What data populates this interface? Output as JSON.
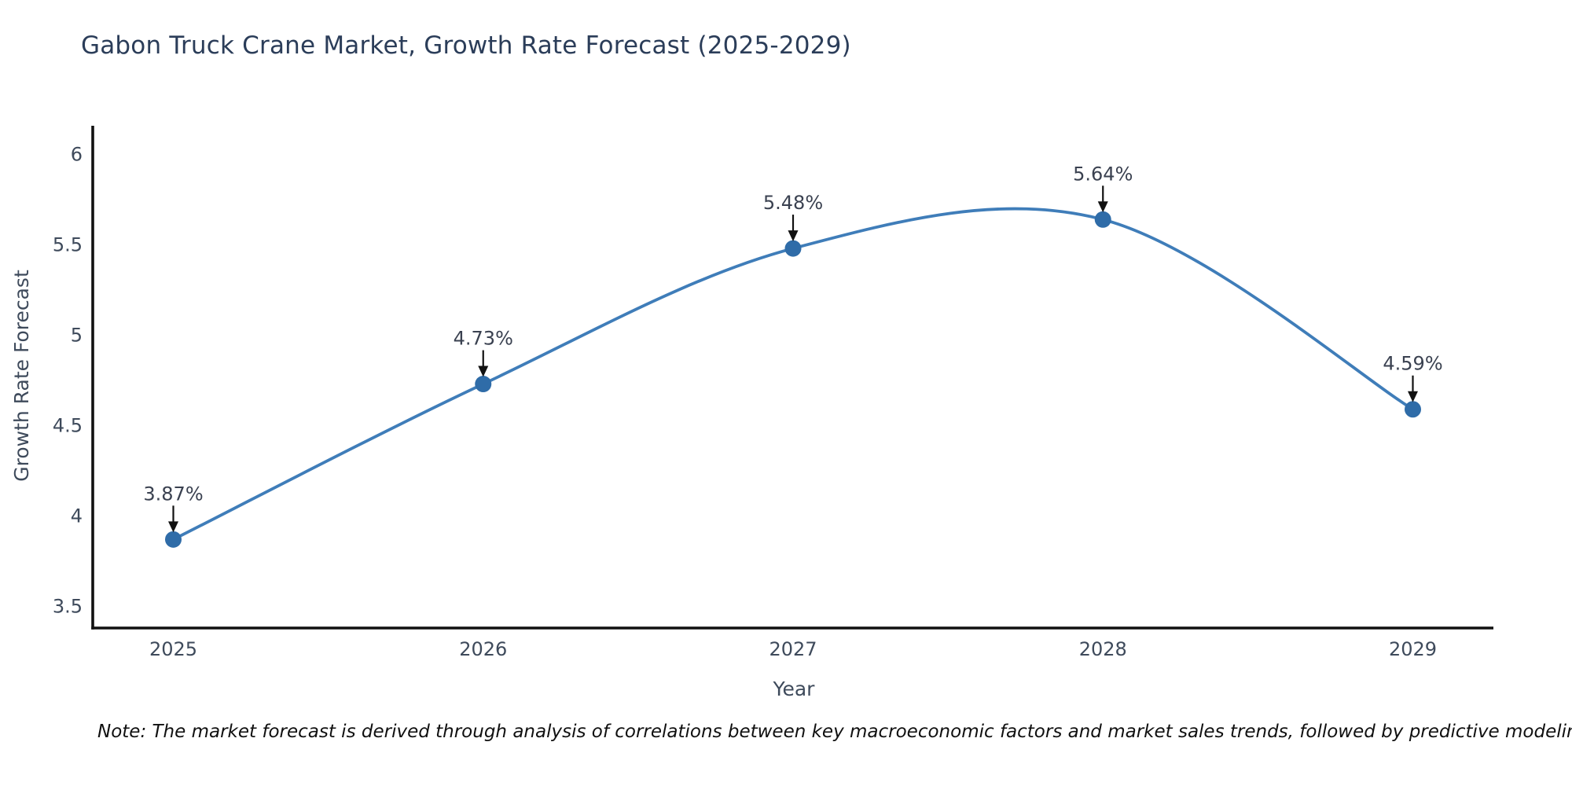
{
  "chart_title": "Gabon Truck Crane Market, Growth Rate Forecast (2025-2029)",
  "note": "Note: The market forecast is derived through analysis of correlations between key macroeconomic factors and market sales trends, followed by predictive modeling to project future sales",
  "chart_data": {
    "type": "line",
    "line_shape": "spline",
    "categories": [
      "2025",
      "2026",
      "2027",
      "2028",
      "2029"
    ],
    "values": [
      3.87,
      4.73,
      5.48,
      5.64,
      4.59
    ],
    "point_labels": [
      "3.87%",
      "4.73%",
      "5.48%",
      "5.64%",
      "4.59%"
    ],
    "series": [
      {
        "name": "Growth Rate Forecast",
        "values": [
          3.87,
          4.73,
          5.48,
          5.64,
          4.59
        ]
      }
    ],
    "title": "Gabon Truck Crane Market, Growth Rate Forecast (2025-2029)",
    "xlabel": "Year",
    "ylabel": "Growth Rate Forecast",
    "yticks": [
      3.5,
      4,
      4.5,
      5,
      5.5,
      6
    ],
    "ytick_labels": [
      "3.5",
      "4",
      "4.5",
      "5",
      "5.5",
      "6"
    ],
    "ylim": [
      3.38,
      6.15
    ],
    "grid": false,
    "legend_position": "none",
    "annotations_have_arrows": true,
    "colors": {
      "line": "#3f7db9",
      "marker": "#2f6ca8",
      "axis": "#111111",
      "title": "#2b3d59",
      "tick": "#3e4a5b",
      "annotation": "#3a4150",
      "arrow": "#111111",
      "note": "#101010",
      "background": "#ffffff"
    }
  }
}
